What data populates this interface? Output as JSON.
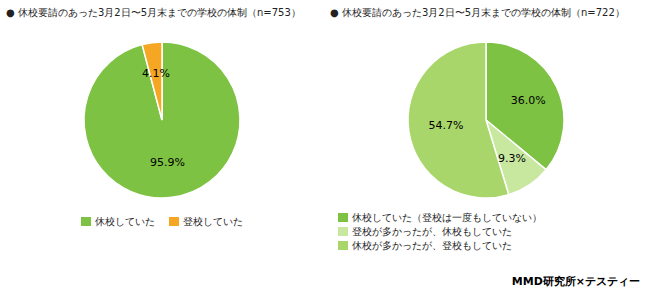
{
  "chart_data": [
    {
      "type": "pie",
      "title": "● 休校要請のあった3月2日〜5月末までの学校の体制（n=753）",
      "categories": [
        "休校していた",
        "登校していた"
      ],
      "values": [
        95.9,
        4.1
      ],
      "value_labels": [
        "95.9%",
        "4.1%"
      ],
      "colors": [
        "#7DC242",
        "#F5A623"
      ],
      "data_labels": true,
      "legend": "bottom"
    },
    {
      "type": "pie",
      "title": "● 休校要請のあった3月2日〜5月末までの学校の体制（n=722）",
      "categories": [
        "休校していた（登校は一度もしていない）",
        "登校が多かったが、休校もしていた",
        "休校が多かったが、登校もしていた"
      ],
      "values": [
        36.0,
        9.3,
        54.7
      ],
      "value_labels": [
        "36.0%",
        "9.3%",
        "54.7%"
      ],
      "colors": [
        "#7DC242",
        "#C8E8A0",
        "#A8D66A"
      ],
      "data_labels": true,
      "legend": "bottom",
      "annotations": [
        "MMD研究所×テスティー"
      ]
    }
  ]
}
